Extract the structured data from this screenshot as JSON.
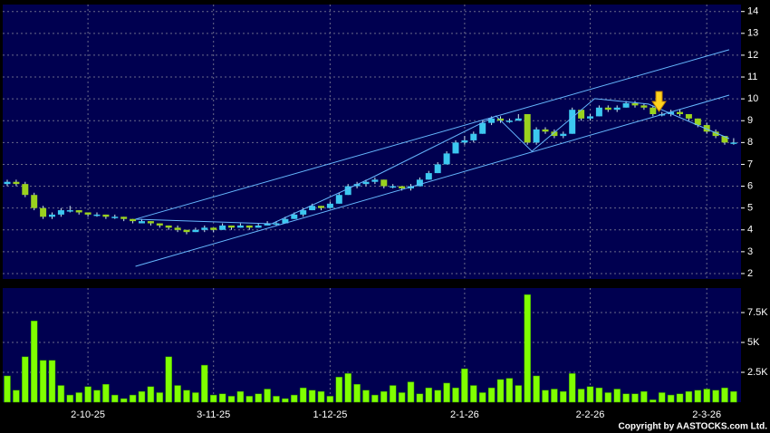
{
  "chart_data": {
    "type": "candlestick",
    "up_color": "#3cc8f0",
    "down_color": "#9ad21e",
    "volume_color": "#80ff00",
    "grid": true,
    "ylim": [
      1.75,
      14.32
    ],
    "yticks": [
      2,
      3,
      4,
      5,
      6,
      7,
      8,
      9,
      10,
      11,
      12,
      13,
      14
    ],
    "volume_ylim": [
      0,
      9550
    ],
    "volume_yticks": [
      {
        "value": 2500,
        "label": "2.5K"
      },
      {
        "value": 5000,
        "label": "5K"
      },
      {
        "value": 7500,
        "label": "7.5K"
      }
    ],
    "xticks": [
      {
        "value": 9,
        "label": "2-10-25"
      },
      {
        "value": 23,
        "label": "3-11-25"
      },
      {
        "value": 36,
        "label": "1-12-25"
      },
      {
        "value": 51,
        "label": "2-1-26"
      },
      {
        "value": 65,
        "label": "2-2-26"
      },
      {
        "value": 78,
        "label": "2-3-26"
      }
    ],
    "candles": [
      [
        6.1,
        6.3,
        6.0,
        6.2
      ],
      [
        6.2,
        6.3,
        6.0,
        6.1
      ],
      [
        6.1,
        6.2,
        5.5,
        5.6
      ],
      [
        5.6,
        5.7,
        4.9,
        5.0
      ],
      [
        5.0,
        5.1,
        4.5,
        4.6
      ],
      [
        4.6,
        4.8,
        4.5,
        4.7
      ],
      [
        4.7,
        5.0,
        4.6,
        4.9
      ],
      [
        4.9,
        5.1,
        4.8,
        4.9
      ],
      [
        4.9,
        4.9,
        4.7,
        4.8
      ],
      [
        4.8,
        4.8,
        4.6,
        4.7
      ],
      [
        4.7,
        4.8,
        4.6,
        4.7
      ],
      [
        4.7,
        4.7,
        4.5,
        4.6
      ],
      [
        4.6,
        4.7,
        4.5,
        4.6
      ],
      [
        4.6,
        4.6,
        4.4,
        4.5
      ],
      [
        4.5,
        4.5,
        4.3,
        4.4
      ],
      [
        4.3,
        4.5,
        4.3,
        4.4
      ],
      [
        4.4,
        4.4,
        4.2,
        4.3
      ],
      [
        4.3,
        4.3,
        4.1,
        4.2
      ],
      [
        4.2,
        4.2,
        4.0,
        4.1
      ],
      [
        4.1,
        4.2,
        3.9,
        4.0
      ],
      [
        4.0,
        4.0,
        3.8,
        3.9
      ],
      [
        3.9,
        4.1,
        3.9,
        4.0
      ],
      [
        4.0,
        4.2,
        3.9,
        4.1
      ],
      [
        4.1,
        4.1,
        3.9,
        4.0
      ],
      [
        4.0,
        4.3,
        4.0,
        4.2
      ],
      [
        4.2,
        4.2,
        4.0,
        4.1
      ],
      [
        4.1,
        4.3,
        4.1,
        4.2
      ],
      [
        4.2,
        4.2,
        4.0,
        4.1
      ],
      [
        4.1,
        4.3,
        4.1,
        4.2
      ],
      [
        4.2,
        4.4,
        4.2,
        4.3
      ],
      [
        4.3,
        4.4,
        4.2,
        4.3
      ],
      [
        4.3,
        4.6,
        4.3,
        4.5
      ],
      [
        4.5,
        4.8,
        4.5,
        4.7
      ],
      [
        4.7,
        5.0,
        4.6,
        4.9
      ],
      [
        4.9,
        5.2,
        4.9,
        5.1
      ],
      [
        5.1,
        5.1,
        4.9,
        5.0
      ],
      [
        5.0,
        5.3,
        5.0,
        5.2
      ],
      [
        5.2,
        5.7,
        5.2,
        5.6
      ],
      [
        5.6,
        6.1,
        5.6,
        6.0
      ],
      [
        6.0,
        6.2,
        5.9,
        6.1
      ],
      [
        6.1,
        6.3,
        6.0,
        6.2
      ],
      [
        6.2,
        6.4,
        6.1,
        6.3
      ],
      [
        6.3,
        6.3,
        5.9,
        6.0
      ],
      [
        6.0,
        6.1,
        5.9,
        6.0
      ],
      [
        6.0,
        6.0,
        5.8,
        5.9
      ],
      [
        5.9,
        6.1,
        5.8,
        6.0
      ],
      [
        6.0,
        6.4,
        6.0,
        6.3
      ],
      [
        6.3,
        6.7,
        6.3,
        6.6
      ],
      [
        6.6,
        7.1,
        6.6,
        7.0
      ],
      [
        7.0,
        7.6,
        7.0,
        7.5
      ],
      [
        7.5,
        8.1,
        7.5,
        8.0
      ],
      [
        8.0,
        8.3,
        7.9,
        8.1
      ],
      [
        8.1,
        8.5,
        8.0,
        8.4
      ],
      [
        8.4,
        9.0,
        8.4,
        8.9
      ],
      [
        8.9,
        9.2,
        8.8,
        9.1
      ],
      [
        9.1,
        9.2,
        8.9,
        9.0
      ],
      [
        9.0,
        9.1,
        8.9,
        9.0
      ],
      [
        9.0,
        9.3,
        9.0,
        9.1
      ],
      [
        9.3,
        9.3,
        7.9,
        8.0
      ],
      [
        8.0,
        8.7,
        7.9,
        8.6
      ],
      [
        8.6,
        8.7,
        8.4,
        8.5
      ],
      [
        8.5,
        8.6,
        8.2,
        8.3
      ],
      [
        8.3,
        8.5,
        8.2,
        8.4
      ],
      [
        8.4,
        9.6,
        8.4,
        9.5
      ],
      [
        9.5,
        9.5,
        9.0,
        9.1
      ],
      [
        9.1,
        9.3,
        9.0,
        9.2
      ],
      [
        9.2,
        9.7,
        9.2,
        9.6
      ],
      [
        9.6,
        9.7,
        9.4,
        9.5
      ],
      [
        9.5,
        9.7,
        9.4,
        9.6
      ],
      [
        9.6,
        9.9,
        9.6,
        9.8
      ],
      [
        9.8,
        9.9,
        9.6,
        9.7
      ],
      [
        9.7,
        9.8,
        9.5,
        9.6
      ],
      [
        9.6,
        9.7,
        9.2,
        9.3
      ],
      [
        9.3,
        9.4,
        9.2,
        9.3
      ],
      [
        9.3,
        9.5,
        9.2,
        9.4
      ],
      [
        9.4,
        9.5,
        9.2,
        9.3
      ],
      [
        9.3,
        9.3,
        9.0,
        9.1
      ],
      [
        9.1,
        9.1,
        8.7,
        8.8
      ],
      [
        8.8,
        8.9,
        8.4,
        8.5
      ],
      [
        8.5,
        8.6,
        8.2,
        8.3
      ],
      [
        8.3,
        8.3,
        7.9,
        8.0
      ],
      [
        8.0,
        8.2,
        7.9,
        8.0
      ]
    ],
    "volume": [
      2200,
      1000,
      3800,
      6800,
      3500,
      3500,
      1400,
      600,
      800,
      1300,
      1000,
      1500,
      600,
      300,
      600,
      900,
      1300,
      800,
      3800,
      1400,
      1000,
      800,
      3100,
      600,
      700,
      500,
      900,
      500,
      700,
      1100,
      500,
      300,
      600,
      1200,
      1000,
      900,
      500,
      2100,
      2400,
      1500,
      1000,
      600,
      900,
      1400,
      800,
      1700,
      700,
      1200,
      1000,
      1600,
      1200,
      2800,
      1400,
      800,
      1200,
      1900,
      2000,
      1400,
      9000,
      2200,
      1000,
      1100,
      900,
      2400,
      1100,
      1300,
      1200,
      800,
      1100,
      700,
      700,
      900,
      200,
      800,
      600,
      700,
      900,
      1000,
      1100,
      1000,
      1200,
      900
    ],
    "trendlines": [
      [
        [
          14.3,
          2.33
        ],
        [
          80.5,
          10.17
        ]
      ],
      [
        [
          14.3,
          4.49
        ],
        [
          80.5,
          12.25
        ]
      ],
      [
        [
          14.3,
          4.49
        ],
        [
          29.5,
          4.28
        ],
        [
          40.5,
          6.36
        ],
        [
          54.5,
          9.22
        ],
        [
          58.5,
          7.6
        ],
        [
          65.5,
          10.01
        ],
        [
          71.5,
          9.76
        ],
        [
          80.5,
          8.18
        ]
      ]
    ],
    "copyright": "Copyright by AASTOCKS.com Ltd."
  }
}
